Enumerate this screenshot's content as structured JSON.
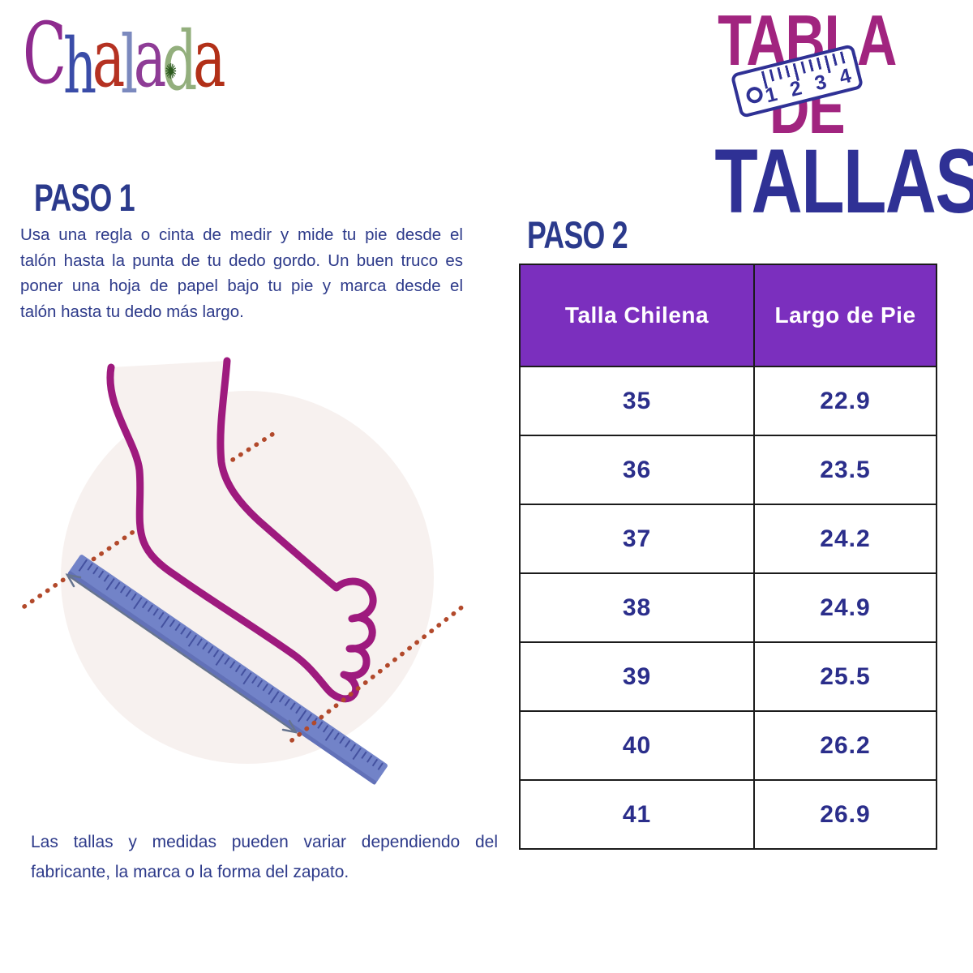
{
  "page": {
    "background": "#ffffff"
  },
  "logo": {
    "brand": "Chalada",
    "letters": [
      {
        "ch": "C",
        "color": "#8E2A8E"
      },
      {
        "ch": "h",
        "color": "#3A4CA8"
      },
      {
        "ch": "a",
        "color": "#B53222"
      },
      {
        "ch": "l",
        "color": "#7B89BE"
      },
      {
        "ch": "a",
        "color": "#8E3C96"
      },
      {
        "ch": "d",
        "color": "#93AF7D",
        "flower": true
      },
      {
        "ch": "a",
        "color": "#B23018"
      }
    ],
    "flower_glyph": "✺",
    "flower_color": "#2C5A1E"
  },
  "title": {
    "line1": "TABLA DE",
    "line2": "TALLAS",
    "line1_color": "#A1247F",
    "line2_color": "#2F3195",
    "ruler_icon": {
      "digits": [
        "1",
        "2",
        "3",
        "4"
      ]
    }
  },
  "step1": {
    "heading": "PASO 1",
    "lines": [
      "Usa una regla o cinta de medir y mide tu pie desde el",
      "talón hasta la punta de tu dedo gordo. Un buen truco es",
      "poner una hoja de papel bajo tu pie y marca desde el",
      "talón hasta tu dedo más largo."
    ]
  },
  "step2": {
    "heading": "PASO 2"
  },
  "note": {
    "lines": [
      "Las tallas y medidas pueden variar dependiendo del",
      "fabricante, la marca o la forma del zapato."
    ]
  },
  "size_table": {
    "headers": [
      "Talla Chilena",
      "Largo de Pie"
    ],
    "rows": [
      [
        "35",
        "22.9"
      ],
      [
        "36",
        "23.5"
      ],
      [
        "37",
        "24.2"
      ],
      [
        "38",
        "24.9"
      ],
      [
        "39",
        "25.5"
      ],
      [
        "40",
        "26.2"
      ],
      [
        "41",
        "26.9"
      ]
    ],
    "header_bg": "#7B2FBE",
    "header_text_color": "#FFFFFF",
    "cell_text_color": "#2B2E8B",
    "border_color": "#1B1B1B"
  },
  "chart_data": {
    "type": "table",
    "columns": [
      "Talla Chilena",
      "Largo de Pie"
    ],
    "rows": [
      [
        35,
        22.9
      ],
      [
        36,
        23.5
      ],
      [
        37,
        24.2
      ],
      [
        38,
        24.9
      ],
      [
        39,
        25.5
      ],
      [
        40,
        26.2
      ],
      [
        41,
        26.9
      ]
    ]
  },
  "illustration": {
    "subject": "foot measured with ruler",
    "foot_outline_color": "#9E1A7E",
    "circle_bg": "#F7F1EF",
    "ruler_color": "#7283C8",
    "ruler_tick_color": "#44519F",
    "dotted_line_color": "#B2492B",
    "arrow_color": "#66748F"
  },
  "text_colors": {
    "headings": "#2B3A8C",
    "body": "#2D3A8A"
  }
}
